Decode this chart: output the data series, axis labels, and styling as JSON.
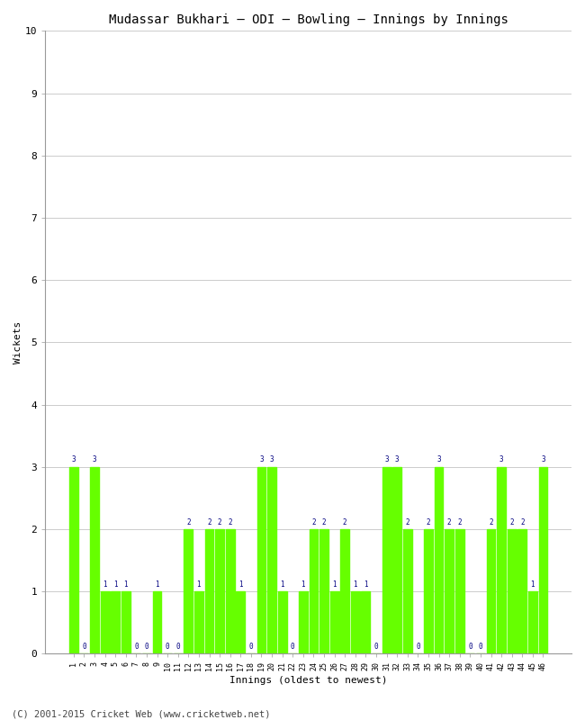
{
  "title": "Mudassar Bukhari – ODI – Bowling – Innings by Innings",
  "xlabel": "Innings (oldest to newest)",
  "ylabel": "Wickets",
  "ylim": [
    0,
    10
  ],
  "yticks": [
    0,
    1,
    2,
    3,
    4,
    5,
    6,
    7,
    8,
    9,
    10
  ],
  "bar_color": "#66ff00",
  "label_color": "#000080",
  "bg_color": "#ffffff",
  "footer": "(C) 2001-2015 Cricket Web (www.cricketweb.net)",
  "innings": [
    1,
    2,
    3,
    4,
    5,
    6,
    7,
    8,
    9,
    10,
    11,
    12,
    13,
    14,
    15,
    16,
    17,
    18,
    19,
    20,
    21,
    22,
    23,
    24,
    25,
    26,
    27,
    28,
    29,
    30,
    31,
    32,
    33,
    34,
    35,
    36,
    37,
    38,
    39,
    40,
    41,
    42,
    43,
    44,
    45,
    46
  ],
  "wickets": [
    3,
    0,
    3,
    1,
    1,
    1,
    0,
    0,
    1,
    0,
    0,
    2,
    1,
    2,
    2,
    2,
    1,
    0,
    3,
    3,
    1,
    0,
    1,
    2,
    2,
    1,
    2,
    1,
    1,
    0,
    3,
    3,
    2,
    0,
    2,
    3,
    2,
    2,
    0,
    0,
    2,
    3,
    2,
    2,
    1,
    3
  ],
  "figsize": [
    6.5,
    8.0
  ],
  "dpi": 100
}
